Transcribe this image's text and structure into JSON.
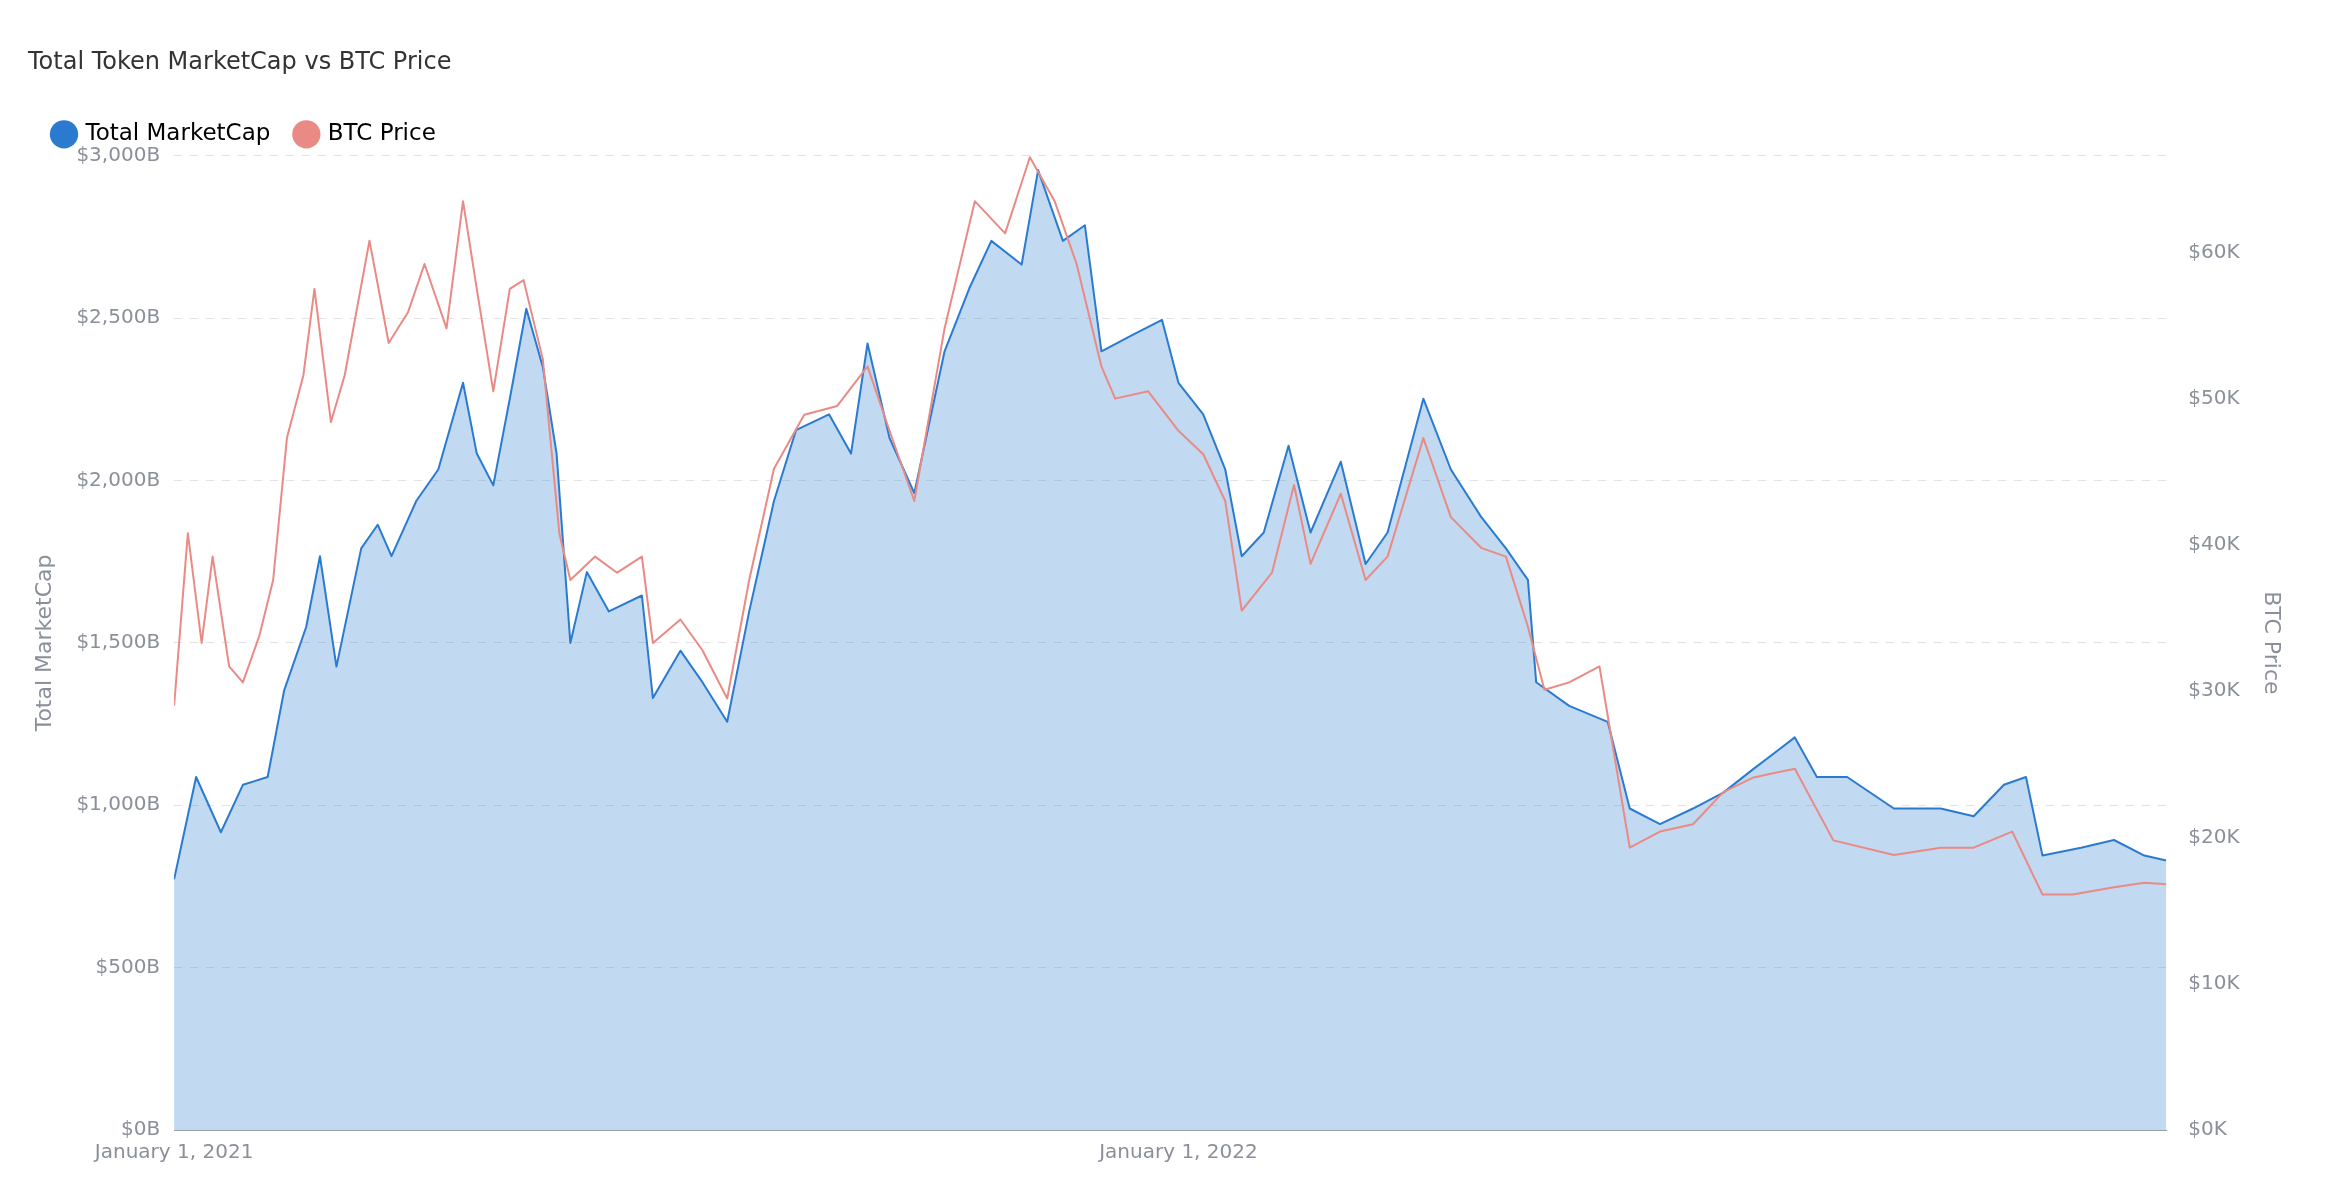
{
  "chart_data": {
    "type": "line",
    "title": "Total Token MarketCap vs BTC Price",
    "ylabel": "Total MarketCap",
    "y2label": "BTC Price",
    "legend": "top left",
    "grid": "y",
    "marker": "none",
    "xlim": [
      "2021-01-01",
      "2022-12-26"
    ],
    "xticks": [
      {
        "value": "2021-01-01",
        "label": "January 1, 2021"
      },
      {
        "value": "2022-01-01",
        "label": "January 1, 2022"
      }
    ],
    "ylim": [
      0,
      3000
    ],
    "yticks": [
      {
        "value": 0,
        "label": "$0B"
      },
      {
        "value": 500,
        "label": "$500B"
      },
      {
        "value": 1000,
        "label": "$1,000B"
      },
      {
        "value": 1500,
        "label": "$1,500B"
      },
      {
        "value": 2000,
        "label": "$2,000B"
      },
      {
        "value": 2500,
        "label": "$2,500B"
      },
      {
        "value": 3000,
        "label": "$3,000B"
      }
    ],
    "y2lim": [
      0,
      66.6
    ],
    "y2ticks": [
      {
        "value": 0,
        "label": "$0K"
      },
      {
        "value": 10,
        "label": "$10K"
      },
      {
        "value": 20,
        "label": "$20K"
      },
      {
        "value": 30,
        "label": "$30K"
      },
      {
        "value": 40,
        "label": "$40K"
      },
      {
        "value": 50,
        "label": "$50K"
      },
      {
        "value": 60,
        "label": "$60K"
      }
    ],
    "series": [
      {
        "name": "Total MarketCap",
        "type": "area",
        "color": "#2a7bd0",
        "x": [
          "2021-01-01",
          "2021-01-09",
          "2021-01-18",
          "2021-01-26",
          "2021-02-04",
          "2021-02-10",
          "2021-02-18",
          "2021-02-23",
          "2021-03-01",
          "2021-03-10",
          "2021-03-16",
          "2021-03-21",
          "2021-03-30",
          "2021-04-07",
          "2021-04-16",
          "2021-04-21",
          "2021-04-27",
          "2021-05-03",
          "2021-05-09",
          "2021-05-15",
          "2021-05-20",
          "2021-05-25",
          "2021-05-31",
          "2021-06-08",
          "2021-06-20",
          "2021-06-24",
          "2021-07-04",
          "2021-07-12",
          "2021-07-21",
          "2021-07-29",
          "2021-08-07",
          "2021-08-15",
          "2021-08-27",
          "2021-09-04",
          "2021-09-10",
          "2021-09-18",
          "2021-09-27",
          "2021-10-08",
          "2021-10-17",
          "2021-10-25",
          "2021-11-05",
          "2021-11-11",
          "2021-11-20",
          "2021-11-28",
          "2021-12-04",
          "2021-12-15",
          "2021-12-26",
          "2022-01-01",
          "2022-01-10",
          "2022-01-18",
          "2022-01-24",
          "2022-02-01",
          "2022-02-10",
          "2022-02-18",
          "2022-03-01",
          "2022-03-10",
          "2022-03-18",
          "2022-03-31",
          "2022-04-10",
          "2022-04-21",
          "2022-04-30",
          "2022-05-08",
          "2022-05-11",
          "2022-05-23",
          "2022-06-06",
          "2022-06-14",
          "2022-06-25",
          "2022-07-07",
          "2022-07-18",
          "2022-07-29",
          "2022-08-13",
          "2022-08-21",
          "2022-09-01",
          "2022-09-18",
          "2022-10-05",
          "2022-10-17",
          "2022-10-28",
          "2022-11-05",
          "2022-11-11",
          "2022-11-25",
          "2022-12-07",
          "2022-12-18",
          "2022-12-26"
        ],
        "values": [
          772,
          1087,
          917,
          1063,
          1087,
          1354,
          1549,
          1767,
          1427,
          1791,
          1864,
          1767,
          1937,
          2034,
          2301,
          2083,
          1985,
          2252,
          2529,
          2350,
          2083,
          1500,
          1718,
          1597,
          1646,
          1330,
          1476,
          1379,
          1257,
          1597,
          1937,
          2155,
          2204,
          2083,
          2422,
          2131,
          1961,
          2398,
          2592,
          2738,
          2665,
          2956,
          2738,
          2786,
          2398,
          2447,
          2495,
          2301,
          2204,
          2034,
          1767,
          1840,
          2107,
          1840,
          2058,
          1743,
          1840,
          2252,
          2034,
          1888,
          1791,
          1694,
          1379,
          1306,
          1257,
          990,
          942,
          990,
          1039,
          1112,
          1209,
          1087,
          1087,
          990,
          990,
          966,
          1063,
          1087,
          845,
          869,
          893,
          845,
          830
        ]
      },
      {
        "name": "BTC Price",
        "type": "line",
        "axis": "y2",
        "color": "#ea8a85",
        "x": [
          "2021-01-01",
          "2021-01-06",
          "2021-01-11",
          "2021-01-15",
          "2021-01-21",
          "2021-01-26",
          "2021-02-01",
          "2021-02-06",
          "2021-02-11",
          "2021-02-17",
          "2021-02-21",
          "2021-02-27",
          "2021-03-04",
          "2021-03-13",
          "2021-03-20",
          "2021-03-27",
          "2021-04-02",
          "2021-04-10",
          "2021-04-16",
          "2021-04-21",
          "2021-04-27",
          "2021-05-03",
          "2021-05-08",
          "2021-05-15",
          "2021-05-21",
          "2021-05-25",
          "2021-06-03",
          "2021-06-11",
          "2021-06-20",
          "2021-06-24",
          "2021-07-04",
          "2021-07-12",
          "2021-07-21",
          "2021-07-29",
          "2021-08-07",
          "2021-08-18",
          "2021-08-30",
          "2021-09-10",
          "2021-09-18",
          "2021-09-27",
          "2021-10-08",
          "2021-10-19",
          "2021-10-30",
          "2021-11-08",
          "2021-11-17",
          "2021-11-25",
          "2021-12-04",
          "2021-12-09",
          "2021-12-21",
          "2022-01-01",
          "2022-01-10",
          "2022-01-18",
          "2022-01-24",
          "2022-02-04",
          "2022-02-12",
          "2022-02-18",
          "2022-03-01",
          "2022-03-10",
          "2022-03-18",
          "2022-03-31",
          "2022-04-10",
          "2022-04-21",
          "2022-04-30",
          "2022-05-08",
          "2022-05-14",
          "2022-05-23",
          "2022-06-03",
          "2022-06-14",
          "2022-06-25",
          "2022-07-07",
          "2022-07-18",
          "2022-07-29",
          "2022-08-13",
          "2022-08-27",
          "2022-09-18",
          "2022-10-05",
          "2022-10-17",
          "2022-10-31",
          "2022-11-11",
          "2022-11-22",
          "2022-12-07",
          "2022-12-18",
          "2022-12-26"
        ],
        "values": [
          29.0,
          40.8,
          33.3,
          39.2,
          31.7,
          30.6,
          33.8,
          37.6,
          47.3,
          51.6,
          57.5,
          48.4,
          51.6,
          60.8,
          53.8,
          55.9,
          59.2,
          54.8,
          63.5,
          57.5,
          50.5,
          57.5,
          58.1,
          52.7,
          40.8,
          37.6,
          39.2,
          38.1,
          39.2,
          33.3,
          34.9,
          32.8,
          29.5,
          37.6,
          45.2,
          48.9,
          49.5,
          52.2,
          47.8,
          43.0,
          54.8,
          63.5,
          61.3,
          66.5,
          63.5,
          59.2,
          52.2,
          50.0,
          50.5,
          47.8,
          46.2,
          43.0,
          35.5,
          38.1,
          44.1,
          38.7,
          43.5,
          37.6,
          39.2,
          47.3,
          41.9,
          39.8,
          39.2,
          34.4,
          30.1,
          30.6,
          31.7,
          19.3,
          20.4,
          20.9,
          23.1,
          24.1,
          24.7,
          19.8,
          18.8,
          19.3,
          19.3,
          20.4,
          16.1,
          16.1,
          16.6,
          16.9,
          16.8
        ]
      }
    ]
  }
}
